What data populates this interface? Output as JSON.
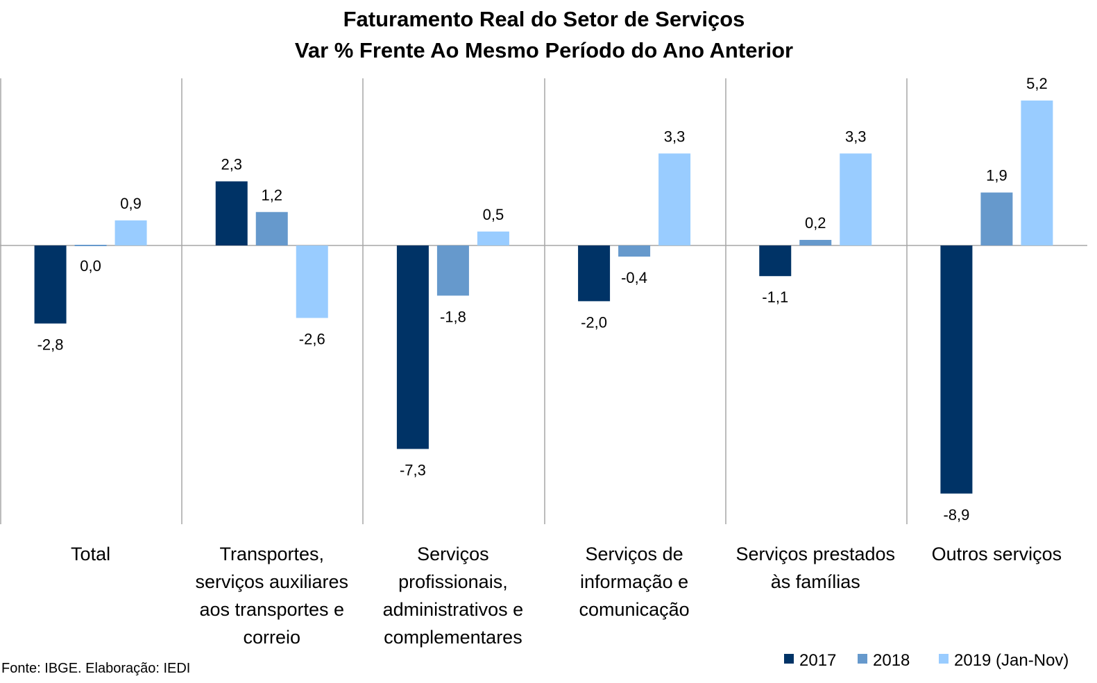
{
  "chart_data": {
    "type": "bar",
    "title": "Faturamento Real do Setor de Serviços",
    "subtitle": "Var % Frente Ao Mesmo Período do Ano Anterior",
    "categories": [
      [
        "Total"
      ],
      [
        "Transportes,",
        "serviços auxiliares",
        "aos transportes e",
        "correio"
      ],
      [
        "Serviços",
        "profissionais,",
        "administrativos e",
        "complementares"
      ],
      [
        "Serviços de",
        "informação e",
        "comunicação"
      ],
      [
        "Serviços prestados",
        "às famílias"
      ],
      [
        "Outros serviços"
      ]
    ],
    "series": [
      {
        "name": "2017",
        "color": "#003366",
        "values": [
          -2.8,
          2.3,
          -7.3,
          -2.0,
          -1.1,
          -8.9
        ],
        "labels": [
          "-2,8",
          "2,3",
          "-7,3",
          "-2,0",
          "-1,1",
          "-8,9"
        ]
      },
      {
        "name": "2018",
        "color": "#6699CC",
        "values": [
          0.0,
          1.2,
          -1.8,
          -0.4,
          0.2,
          1.9
        ],
        "labels": [
          "0,0",
          "1,2",
          "-1,8",
          "-0,4",
          "0,2",
          "1,9"
        ]
      },
      {
        "name": "2019 (Jan-Nov)",
        "color": "#99CCFF",
        "values": [
          0.9,
          -2.6,
          0.5,
          3.3,
          3.3,
          5.2
        ],
        "labels": [
          "0,9",
          "-2,6",
          "0,5",
          "3,3",
          "3,3",
          "5,2"
        ]
      }
    ],
    "ylim": [
      -10,
      6
    ],
    "grid": false,
    "legend": "bottom-right",
    "source": "Fonte: IBGE. Elaboração: IEDI"
  }
}
